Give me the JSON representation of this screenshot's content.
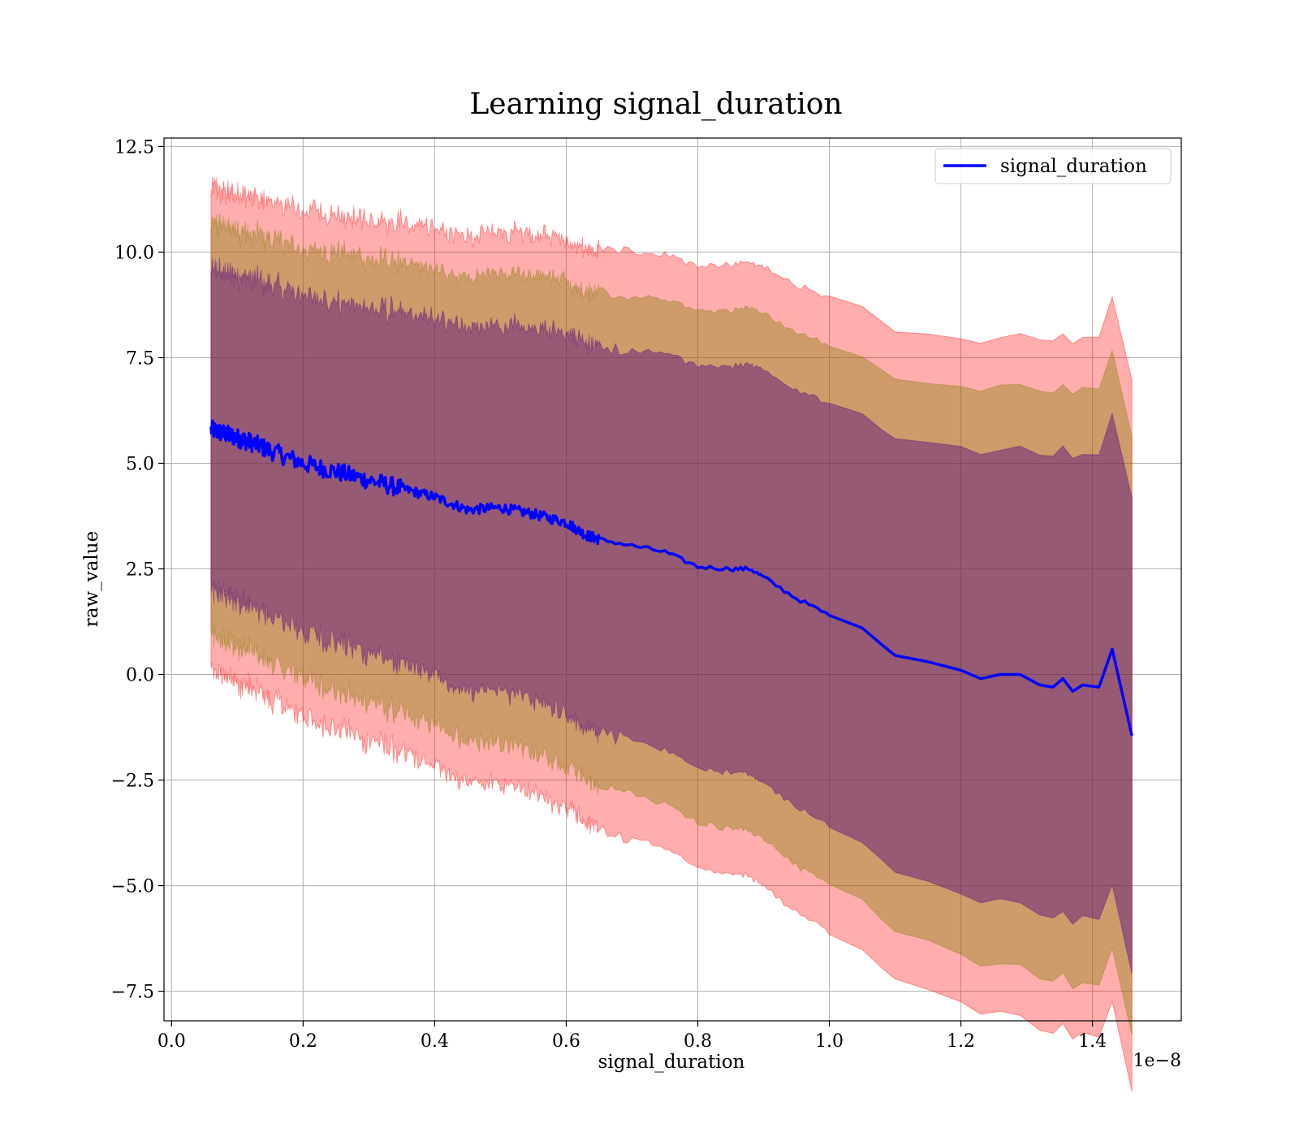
{
  "chart_data": {
    "type": "line",
    "title": "Learning signal_duration",
    "xlabel": "signal_duration",
    "ylabel": "raw_value",
    "x_offset_text": "1e−8",
    "xlim": [
      -0.0115,
      1.535
    ],
    "ylim": [
      -8.2,
      12.7
    ],
    "xticks": [
      0.0,
      0.2,
      0.4,
      0.6,
      0.8,
      1.0,
      1.2,
      1.4
    ],
    "xtick_labels": [
      "0.0",
      "0.2",
      "0.4",
      "0.6",
      "0.8",
      "1.0",
      "1.2",
      "1.4"
    ],
    "yticks": [
      -7.5,
      -5.0,
      -2.5,
      0.0,
      2.5,
      5.0,
      7.5,
      10.0,
      12.5
    ],
    "ytick_labels": [
      "−7.5",
      "−5.0",
      "−2.5",
      "0.0",
      "2.5",
      "5.0",
      "7.5",
      "10.0",
      "12.5"
    ],
    "grid": true,
    "legend_position": "top-right",
    "colors": {
      "line": "#0000ff",
      "band_outer": "#ff0000",
      "band_middle": "#7f7f00",
      "band_inner": "#4b0082"
    },
    "series": [
      {
        "name": "signal_duration",
        "x": [
          0.06,
          0.08,
          0.1,
          0.12,
          0.15,
          0.2,
          0.25,
          0.3,
          0.35,
          0.4,
          0.45,
          0.5,
          0.55,
          0.6,
          0.63,
          0.65,
          0.7,
          0.75,
          0.8,
          0.85,
          0.88,
          0.9,
          0.95,
          1.0,
          1.05,
          1.08,
          1.1,
          1.15,
          1.2,
          1.23,
          1.26,
          1.29,
          1.32,
          1.34,
          1.355,
          1.37,
          1.385,
          1.41,
          1.43,
          1.46
        ],
        "y": [
          5.8,
          5.7,
          5.6,
          5.5,
          5.3,
          5.0,
          4.8,
          4.6,
          4.4,
          4.2,
          3.9,
          3.95,
          3.8,
          3.6,
          3.3,
          3.2,
          3.05,
          2.9,
          2.55,
          2.5,
          2.5,
          2.3,
          1.8,
          1.4,
          1.1,
          0.7,
          0.45,
          0.3,
          0.1,
          -0.1,
          0.0,
          0.0,
          -0.25,
          -0.3,
          -0.1,
          -0.4,
          -0.25,
          -0.3,
          0.6,
          -1.45
        ]
      }
    ]
  }
}
